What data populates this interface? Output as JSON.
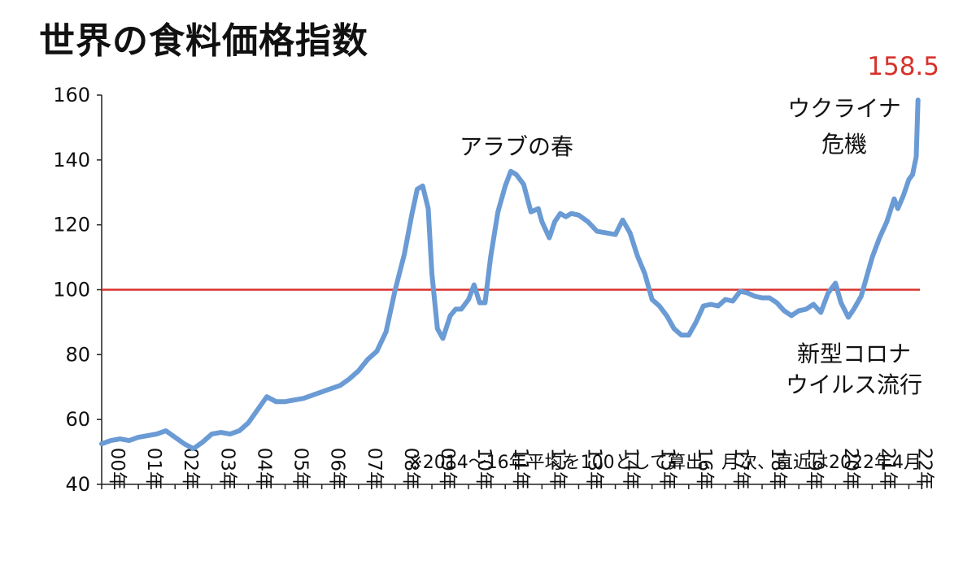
{
  "chart_data": {
    "type": "line",
    "title": "世界の食料価格指数",
    "xlabel": "",
    "ylabel": "",
    "ylim": [
      40,
      160
    ],
    "yticks": [
      40,
      60,
      80,
      100,
      120,
      140,
      160
    ],
    "xlim": [
      2000,
      2022.3
    ],
    "xtick_labels": [
      "00年",
      "01年",
      "02年",
      "03年",
      "04年",
      "05年",
      "06年",
      "07年",
      "08年",
      "09年",
      "10年",
      "11年",
      "12年",
      "13年",
      "14年",
      "15年",
      "16年",
      "17年",
      "18年",
      "19年",
      "20年",
      "21年",
      "22年"
    ],
    "grid": false,
    "reference_line": {
      "y": 100,
      "color": "#d7322b"
    },
    "series": [
      {
        "color": "#6a9bd4",
        "x": [
          2000.0,
          2000.25,
          2000.5,
          2000.75,
          2001.0,
          2001.25,
          2001.5,
          2001.75,
          2002.0,
          2002.25,
          2002.5,
          2002.75,
          2003.0,
          2003.25,
          2003.5,
          2003.75,
          2004.0,
          2004.25,
          2004.5,
          2004.75,
          2005.0,
          2005.25,
          2005.5,
          2005.75,
          2006.0,
          2006.25,
          2006.5,
          2006.75,
          2007.0,
          2007.25,
          2007.5,
          2007.75,
          2008.0,
          2008.25,
          2008.45,
          2008.6,
          2008.75,
          2008.9,
          2009.0,
          2009.15,
          2009.3,
          2009.5,
          2009.65,
          2009.8,
          2010.0,
          2010.15,
          2010.3,
          2010.45,
          2010.6,
          2010.8,
          2011.0,
          2011.15,
          2011.3,
          2011.5,
          2011.7,
          2011.9,
          2012.0,
          2012.2,
          2012.35,
          2012.5,
          2012.65,
          2012.8,
          2013.0,
          2013.25,
          2013.5,
          2013.75,
          2014.0,
          2014.2,
          2014.4,
          2014.6,
          2014.8,
          2015.0,
          2015.2,
          2015.4,
          2015.6,
          2015.8,
          2016.0,
          2016.2,
          2016.4,
          2016.6,
          2016.8,
          2017.0,
          2017.2,
          2017.4,
          2017.6,
          2017.8,
          2018.0,
          2018.2,
          2018.4,
          2018.6,
          2018.8,
          2019.0,
          2019.2,
          2019.4,
          2019.6,
          2019.8,
          2020.0,
          2020.15,
          2020.35,
          2020.5,
          2020.7,
          2020.85,
          2021.0,
          2021.2,
          2021.4,
          2021.6,
          2021.7,
          2021.85,
          2022.0,
          2022.1,
          2022.2,
          2022.25
        ],
        "y": [
          52.5,
          53.5,
          54,
          53.5,
          54.5,
          55,
          55.5,
          56.5,
          54.5,
          52.5,
          51,
          53,
          55.5,
          56,
          55.5,
          56.5,
          59,
          63,
          67,
          65.5,
          65.5,
          66,
          66.5,
          67.5,
          68.5,
          69.5,
          70.5,
          72.5,
          75,
          78.5,
          81,
          87,
          100,
          111,
          123,
          131,
          132,
          125,
          105,
          88,
          85,
          92,
          94,
          94,
          97,
          101.5,
          96,
          96,
          110,
          124,
          132,
          136.5,
          135.5,
          132.5,
          124,
          125,
          121,
          116,
          121,
          123.5,
          122.5,
          123.5,
          123,
          121,
          118,
          117.5,
          117,
          121.5,
          117.5,
          110.5,
          105,
          97,
          95,
          92,
          88,
          86,
          86,
          90,
          95,
          95.5,
          95,
          97,
          96.5,
          99.5,
          99,
          98,
          97.5,
          97.5,
          96,
          93.5,
          92,
          93.5,
          94,
          95.5,
          93,
          99,
          102,
          96,
          91.5,
          94,
          98,
          104,
          110,
          116,
          121,
          128,
          125,
          129,
          134,
          135.5,
          141,
          158.5
        ]
      }
    ],
    "annotations": [
      {
        "id": "arab-spring",
        "text": "アラブの春"
      },
      {
        "id": "ukraine",
        "lines": [
          "ウクライナ",
          "危機"
        ]
      },
      {
        "id": "covid",
        "lines": [
          "新型コロナ",
          "ウイルス流行"
        ]
      }
    ],
    "peak_label": {
      "text": "158.5",
      "color": "#d7322b"
    },
    "footnote": "※2014～16年平均を100として算出、月次、直近は2022年4月"
  }
}
